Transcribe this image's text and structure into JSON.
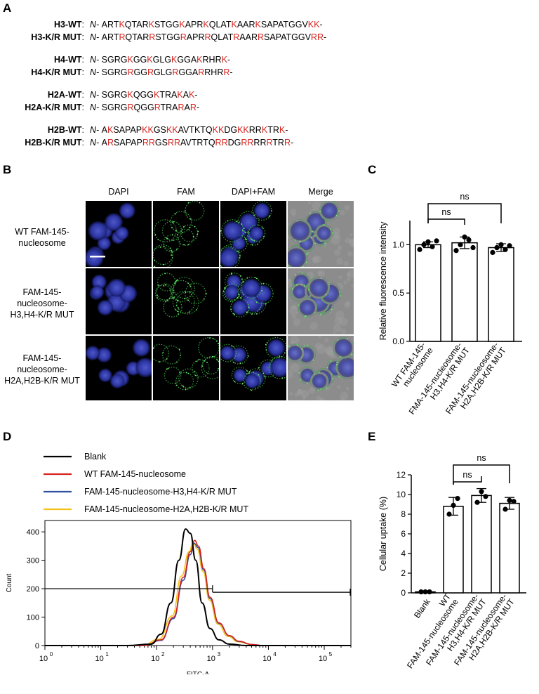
{
  "panels": {
    "a": "A",
    "b": "B",
    "c": "C",
    "d": "D",
    "e": "E"
  },
  "sequences": [
    {
      "name": "H3-WT",
      "colon": ":",
      "nterm": "N-",
      "segments": [
        {
          "t": "ART",
          "r": false
        },
        {
          "t": "K",
          "r": true
        },
        {
          "t": "QTAR",
          "r": false
        },
        {
          "t": "K",
          "r": true
        },
        {
          "t": "STGG",
          "r": false
        },
        {
          "t": "K",
          "r": true
        },
        {
          "t": "APR",
          "r": false
        },
        {
          "t": "K",
          "r": true
        },
        {
          "t": "QLAT",
          "r": false
        },
        {
          "t": "K",
          "r": true
        },
        {
          "t": "AAR",
          "r": false
        },
        {
          "t": "K",
          "r": true
        },
        {
          "t": "SAPATGGV",
          "r": false
        },
        {
          "t": "KK",
          "r": true
        },
        {
          "t": "-",
          "r": false
        }
      ]
    },
    {
      "name": "H3-K/R MUT",
      "colon": ":",
      "nterm": "N-",
      "segments": [
        {
          "t": "ART",
          "r": false
        },
        {
          "t": "R",
          "r": true
        },
        {
          "t": "QTAR",
          "r": false
        },
        {
          "t": "R",
          "r": true
        },
        {
          "t": "STGG",
          "r": false
        },
        {
          "t": "R",
          "r": true
        },
        {
          "t": "APR",
          "r": false
        },
        {
          "t": "R",
          "r": true
        },
        {
          "t": "QLAT",
          "r": false
        },
        {
          "t": "R",
          "r": true
        },
        {
          "t": "AAR",
          "r": false
        },
        {
          "t": "R",
          "r": true
        },
        {
          "t": "SAPATGGV",
          "r": false
        },
        {
          "t": "RR",
          "r": true
        },
        {
          "t": "-",
          "r": false
        }
      ]
    },
    {
      "name": "H4-WT",
      "colon": ":",
      "nterm": "N-",
      "segments": [
        {
          "t": "SGRG",
          "r": false
        },
        {
          "t": "K",
          "r": true
        },
        {
          "t": "GG",
          "r": false
        },
        {
          "t": "K",
          "r": true
        },
        {
          "t": "GLG",
          "r": false
        },
        {
          "t": "K",
          "r": true
        },
        {
          "t": "GGA",
          "r": false
        },
        {
          "t": "K",
          "r": true
        },
        {
          "t": "RHR",
          "r": false
        },
        {
          "t": "K",
          "r": true
        },
        {
          "t": "-",
          "r": false
        }
      ]
    },
    {
      "name": "H4-K/R MUT",
      "colon": ":",
      "nterm": "N-",
      "segments": [
        {
          "t": "SGRG",
          "r": false
        },
        {
          "t": "R",
          "r": true
        },
        {
          "t": "GG",
          "r": false
        },
        {
          "t": "R",
          "r": true
        },
        {
          "t": "GLG",
          "r": false
        },
        {
          "t": "R",
          "r": true
        },
        {
          "t": "GGA",
          "r": false
        },
        {
          "t": "R",
          "r": true
        },
        {
          "t": "RHR",
          "r": false
        },
        {
          "t": "R",
          "r": true
        },
        {
          "t": "-",
          "r": false
        }
      ]
    },
    {
      "name": "H2A-WT",
      "colon": ":",
      "nterm": "N-",
      "segments": [
        {
          "t": "SGRG",
          "r": false
        },
        {
          "t": "K",
          "r": true
        },
        {
          "t": "QGG",
          "r": false
        },
        {
          "t": "K",
          "r": true
        },
        {
          "t": "TRA",
          "r": false
        },
        {
          "t": "K",
          "r": true
        },
        {
          "t": "A",
          "r": false
        },
        {
          "t": "K",
          "r": true
        },
        {
          "t": "-",
          "r": false
        }
      ]
    },
    {
      "name": "H2A-K/R MUT",
      "colon": ":",
      "nterm": "N-",
      "segments": [
        {
          "t": "SGRG",
          "r": false
        },
        {
          "t": "R",
          "r": true
        },
        {
          "t": "QGG",
          "r": false
        },
        {
          "t": "R",
          "r": true
        },
        {
          "t": "TRA",
          "r": false
        },
        {
          "t": "R",
          "r": true
        },
        {
          "t": "A",
          "r": false
        },
        {
          "t": "R",
          "r": true
        },
        {
          "t": "-",
          "r": false
        }
      ]
    },
    {
      "name": "H2B-WT",
      "colon": ":",
      "nterm": "N-",
      "segments": [
        {
          "t": "A",
          "r": false
        },
        {
          "t": "K",
          "r": true
        },
        {
          "t": "SAPAP",
          "r": false
        },
        {
          "t": "KK",
          "r": true
        },
        {
          "t": "GS",
          "r": false
        },
        {
          "t": "KK",
          "r": true
        },
        {
          "t": "AVTKTQ",
          "r": false
        },
        {
          "t": "KK",
          "r": true
        },
        {
          "t": "DG",
          "r": false
        },
        {
          "t": "KK",
          "r": true
        },
        {
          "t": "RR",
          "r": false
        },
        {
          "t": "K",
          "r": true
        },
        {
          "t": "TR",
          "r": false
        },
        {
          "t": "K",
          "r": true
        },
        {
          "t": "-",
          "r": false
        }
      ]
    },
    {
      "name": "H2B-K/R MUT",
      "colon": ":",
      "nterm": "N-",
      "segments": [
        {
          "t": "A",
          "r": false
        },
        {
          "t": "R",
          "r": true
        },
        {
          "t": "SAPAP",
          "r": false
        },
        {
          "t": "RR",
          "r": true
        },
        {
          "t": "GS",
          "r": false
        },
        {
          "t": "RR",
          "r": true
        },
        {
          "t": "AVTRTQ",
          "r": false
        },
        {
          "t": "RR",
          "r": true
        },
        {
          "t": "DG",
          "r": false
        },
        {
          "t": "RR",
          "r": true
        },
        {
          "t": "RR",
          "r": false
        },
        {
          "t": "R",
          "r": true
        },
        {
          "t": "TR",
          "r": false
        },
        {
          "t": "R",
          "r": true
        },
        {
          "t": "-",
          "r": false
        }
      ]
    }
  ],
  "microscopy": {
    "columns": [
      "DAPI",
      "FAM",
      "DAPI+FAM",
      "Merge"
    ],
    "rows": [
      [
        "WT FAM-145-",
        "nucleosome"
      ],
      [
        "FAM-145-",
        "nucleosome-",
        "H3,H4-K/R MUT"
      ],
      [
        "FAM-145-",
        "nucleosome-",
        "H2A,H2B-K/R MUT"
      ]
    ]
  },
  "chart_data": [
    {
      "type": "bar",
      "panel": "C",
      "ylabel": "Relative fluorescence intensity",
      "ylim": [
        0,
        1.25
      ],
      "yticks": [
        "0.0",
        "0.5",
        "1.0"
      ],
      "categories": [
        "WT FAM-145-nucleosome",
        "FMA-145-nucleosome-H3,H4-K/R MUT",
        "FAM-145-nucleosome-H2A,H2B-K/R MUT"
      ],
      "category_lines": [
        [
          "WT FAM-145-",
          "nucleosome"
        ],
        [
          "FMA-145-nucleosome-",
          "H3,H4-K/R MUT"
        ],
        [
          "FAM-145-nucleosome-",
          "H2A,H2B-K/R MUT"
        ]
      ],
      "values": [
        1.0,
        1.02,
        0.97
      ],
      "errors": [
        0.03,
        0.06,
        0.04
      ],
      "points": [
        [
          0.95,
          1.0,
          1.03,
          0.98,
          1.04
        ],
        [
          0.94,
          1.0,
          1.08,
          1.05,
          0.97
        ],
        [
          0.92,
          0.97,
          1.0,
          0.95,
          0.99
        ]
      ],
      "significance": [
        {
          "from": 0,
          "to": 1,
          "label": "ns"
        },
        {
          "from": 0,
          "to": 2,
          "label": "ns"
        }
      ]
    },
    {
      "type": "line",
      "panel": "D",
      "xlabel": "FITC-A",
      "ylabel": "Count",
      "xscale": "log",
      "xlim": [
        1,
        300000
      ],
      "ylim": [
        0,
        440
      ],
      "xticks": [
        {
          "base": "10",
          "exp": "0"
        },
        {
          "base": "10",
          "exp": "1"
        },
        {
          "base": "10",
          "exp": "2"
        },
        {
          "base": "10",
          "exp": "3"
        },
        {
          "base": "10",
          "exp": "4"
        },
        {
          "base": "10",
          "exp": "5"
        }
      ],
      "yticks": [
        "0",
        "100",
        "200",
        "300",
        "400"
      ],
      "gate_y": 200,
      "gate_x": 1000,
      "series": [
        {
          "name": "Blank",
          "color": "#000000",
          "x": [
            30,
            80,
            120,
            180,
            250,
            330,
            400,
            500,
            650,
            900,
            1300,
            2000,
            4000
          ],
          "y": [
            0,
            5,
            40,
            150,
            300,
            410,
            395,
            300,
            150,
            60,
            20,
            5,
            0
          ]
        },
        {
          "name": "WT FAM-145-nucleosome",
          "color": "#d7231f",
          "x": [
            60,
            120,
            200,
            300,
            400,
            480,
            560,
            700,
            900,
            1300,
            2000,
            3000,
            5000,
            8000
          ],
          "y": [
            0,
            20,
            100,
            240,
            330,
            370,
            350,
            270,
            170,
            80,
            35,
            15,
            4,
            0
          ]
        },
        {
          "name": "FAM-145-nucleosome-H3,H4-K/R MUT",
          "color": "#2f4f9f",
          "x": [
            60,
            120,
            200,
            300,
            400,
            470,
            550,
            700,
            900,
            1300,
            2000,
            3000,
            5000,
            8000
          ],
          "y": [
            0,
            18,
            95,
            230,
            320,
            360,
            345,
            265,
            165,
            78,
            34,
            14,
            4,
            0
          ]
        },
        {
          "name": "FAM-145-nucleosome-H2A,H2B-K/R MUT",
          "color": "#f2c21b",
          "x": [
            55,
            110,
            190,
            280,
            380,
            450,
            530,
            680,
            880,
            1250,
            1900,
            2900,
            4800,
            7500
          ],
          "y": [
            0,
            22,
            105,
            245,
            330,
            362,
            340,
            260,
            160,
            75,
            32,
            13,
            4,
            0
          ]
        }
      ]
    },
    {
      "type": "bar",
      "panel": "E",
      "ylabel": "Cellular uptake (%)",
      "ylim": [
        0,
        12
      ],
      "yticks": [
        "0",
        "2",
        "4",
        "6",
        "8",
        "10",
        "12"
      ],
      "categories": [
        "Blank",
        "WT FAM-145-nucleosome",
        "FAM-145-nucleosome-H3,H4-K/R MUT",
        "FAM-145-nucleosome-H2A,H2B-K/R MUT"
      ],
      "category_lines": [
        [
          "Blank"
        ],
        [
          "WT",
          "FAM-145-nucleosome"
        ],
        [
          "FAM-145-nucleosome-",
          "H3,H4-K/R MUT"
        ],
        [
          "FAM-145-nucleosome-",
          "H2A,H2B-K/R MUT"
        ]
      ],
      "values": [
        0.1,
        8.8,
        9.9,
        9.1
      ],
      "errors": [
        0.05,
        0.9,
        0.7,
        0.6
      ],
      "points": [
        [
          0.1,
          0.1,
          0.1
        ],
        [
          8.0,
          8.9,
          9.6
        ],
        [
          9.2,
          10.3,
          9.8
        ],
        [
          8.5,
          9.4,
          9.3
        ]
      ],
      "significance": [
        {
          "from": 1,
          "to": 2,
          "label": "ns"
        },
        {
          "from": 1,
          "to": 3,
          "label": "ns"
        }
      ]
    }
  ]
}
